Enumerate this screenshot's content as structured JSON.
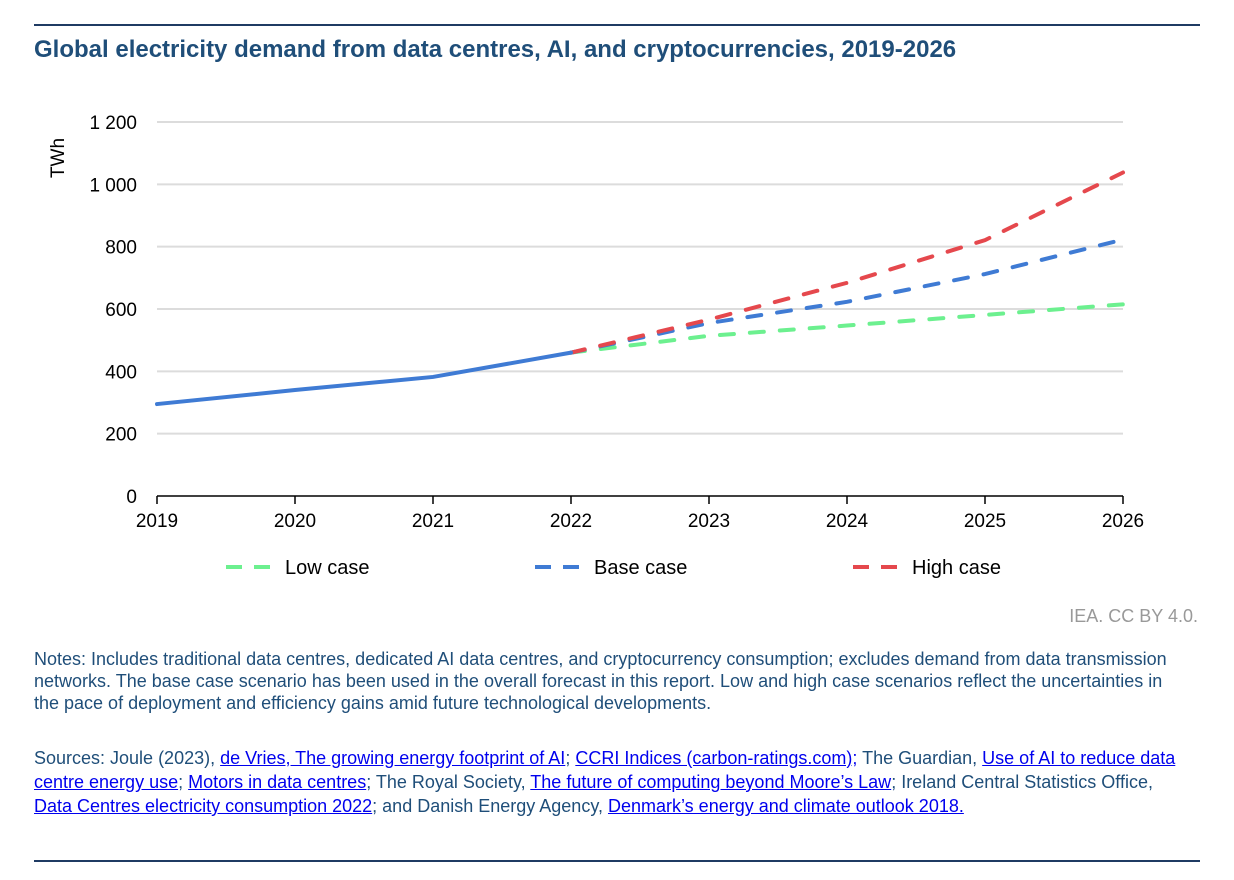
{
  "title": "Global electricity demand from data centres, AI, and cryptocurrencies, 2019-2026",
  "credit": "IEA. CC BY 4.0.",
  "notes": "Notes: Includes traditional data centres, dedicated AI data centres, and cryptocurrency consumption; excludes demand from data transmission networks. The base case scenario has been used in the overall forecast in this report. Low and high case scenarios reflect the uncertainties in the pace of deployment and efficiency gains amid future technological developments.",
  "sources": [
    {
      "text": "Sources: Joule (2023), ",
      "link": false
    },
    {
      "text": "de Vries, The growing energy footprint of AI",
      "link": true
    },
    {
      "text": "; ",
      "link": false
    },
    {
      "text": "CCRI Indices (carbon-ratings.com);",
      "link": true
    },
    {
      "text": " The Guardian, ",
      "link": false
    },
    {
      "text": "Use of AI to reduce data centre energy use",
      "link": true
    },
    {
      "text": "; ",
      "link": false
    },
    {
      "text": "Motors in data centres",
      "link": true
    },
    {
      "text": "; The Royal Society, ",
      "link": false
    },
    {
      "text": "The future of computing beyond Moore’s Law",
      "link": true
    },
    {
      "text": "; Ireland Central Statistics Office, ",
      "link": false
    },
    {
      "text": "Data Centres electricity consumption 2022",
      "link": true
    },
    {
      "text": "; and Danish Energy Agency, ",
      "link": false
    },
    {
      "text": "Denmark’s energy and climate outlook 2018.",
      "link": true
    }
  ],
  "chart_data": {
    "type": "line",
    "ylabel": "TWh",
    "xlabel": "",
    "ylim": [
      0,
      1200
    ],
    "yticks": [
      "0",
      "200",
      "400",
      "600",
      "800",
      "1 000",
      "1 200"
    ],
    "x": [
      "2019",
      "2020",
      "2021",
      "2022",
      "2023",
      "2024",
      "2025",
      "2026"
    ],
    "grid": true,
    "legend": "bottom",
    "series": [
      {
        "name": "",
        "style": "solid",
        "color": "#3f7bd4",
        "x": [
          "2019",
          "2020",
          "2021",
          "2022"
        ],
        "values": [
          295,
          340,
          382,
          460
        ]
      },
      {
        "name": "Low case",
        "style": "dashed",
        "color": "#6cf08f",
        "x": [
          "2022",
          "2023",
          "2024",
          "2025",
          "2026"
        ],
        "values": [
          460,
          514,
          547,
          581,
          615
        ]
      },
      {
        "name": "Base case",
        "style": "dashed",
        "color": "#3f7bd4",
        "x": [
          "2022",
          "2023",
          "2024",
          "2025",
          "2026"
        ],
        "values": [
          460,
          555,
          623,
          712,
          823
        ]
      },
      {
        "name": "High case",
        "style": "dashed",
        "color": "#e5484d",
        "x": [
          "2022",
          "2023",
          "2024",
          "2025",
          "2026"
        ],
        "values": [
          460,
          566,
          684,
          821,
          1038
        ]
      }
    ]
  }
}
